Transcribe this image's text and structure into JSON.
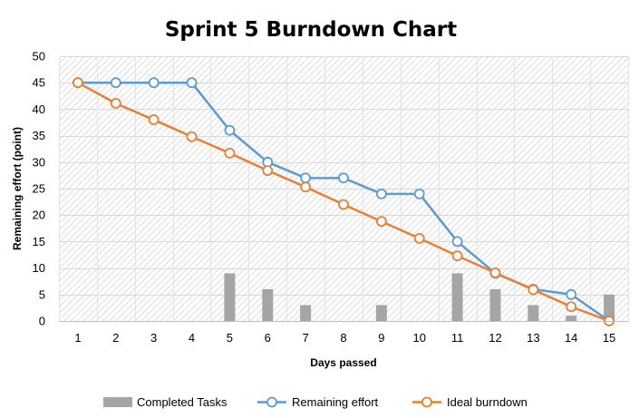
{
  "chart_data": {
    "type": "line",
    "title": "Sprint 5 Burndown Chart",
    "xlabel": "Days passed",
    "ylabel": "Remaining effort (point)",
    "categories": [
      1,
      2,
      3,
      4,
      5,
      6,
      7,
      8,
      9,
      10,
      11,
      12,
      13,
      14,
      15
    ],
    "ylim": [
      0,
      50
    ],
    "yticks": [
      0,
      5,
      10,
      15,
      20,
      25,
      30,
      35,
      40,
      45,
      50
    ],
    "grid": true,
    "legend_position": "bottom",
    "series": [
      {
        "name": "Completed Tasks",
        "type": "bar",
        "color": "#a5a5a5",
        "values": [
          0,
          0,
          0,
          0,
          9,
          6,
          3,
          0,
          3,
          0,
          9,
          6,
          3,
          1,
          5
        ]
      },
      {
        "name": "Remaining effort",
        "type": "line",
        "color": "#5b9bd5",
        "values": [
          45,
          45,
          45,
          45,
          36,
          30,
          27,
          27,
          24,
          24,
          15,
          9,
          6,
          5,
          0
        ]
      },
      {
        "name": "Ideal burndown",
        "type": "line",
        "color": "#ed7d31",
        "values": [
          45,
          41.1,
          38,
          34.8,
          31.7,
          28.4,
          25.3,
          22,
          18.8,
          15.6,
          12.3,
          9.1,
          5.9,
          2.7,
          0
        ]
      }
    ]
  }
}
